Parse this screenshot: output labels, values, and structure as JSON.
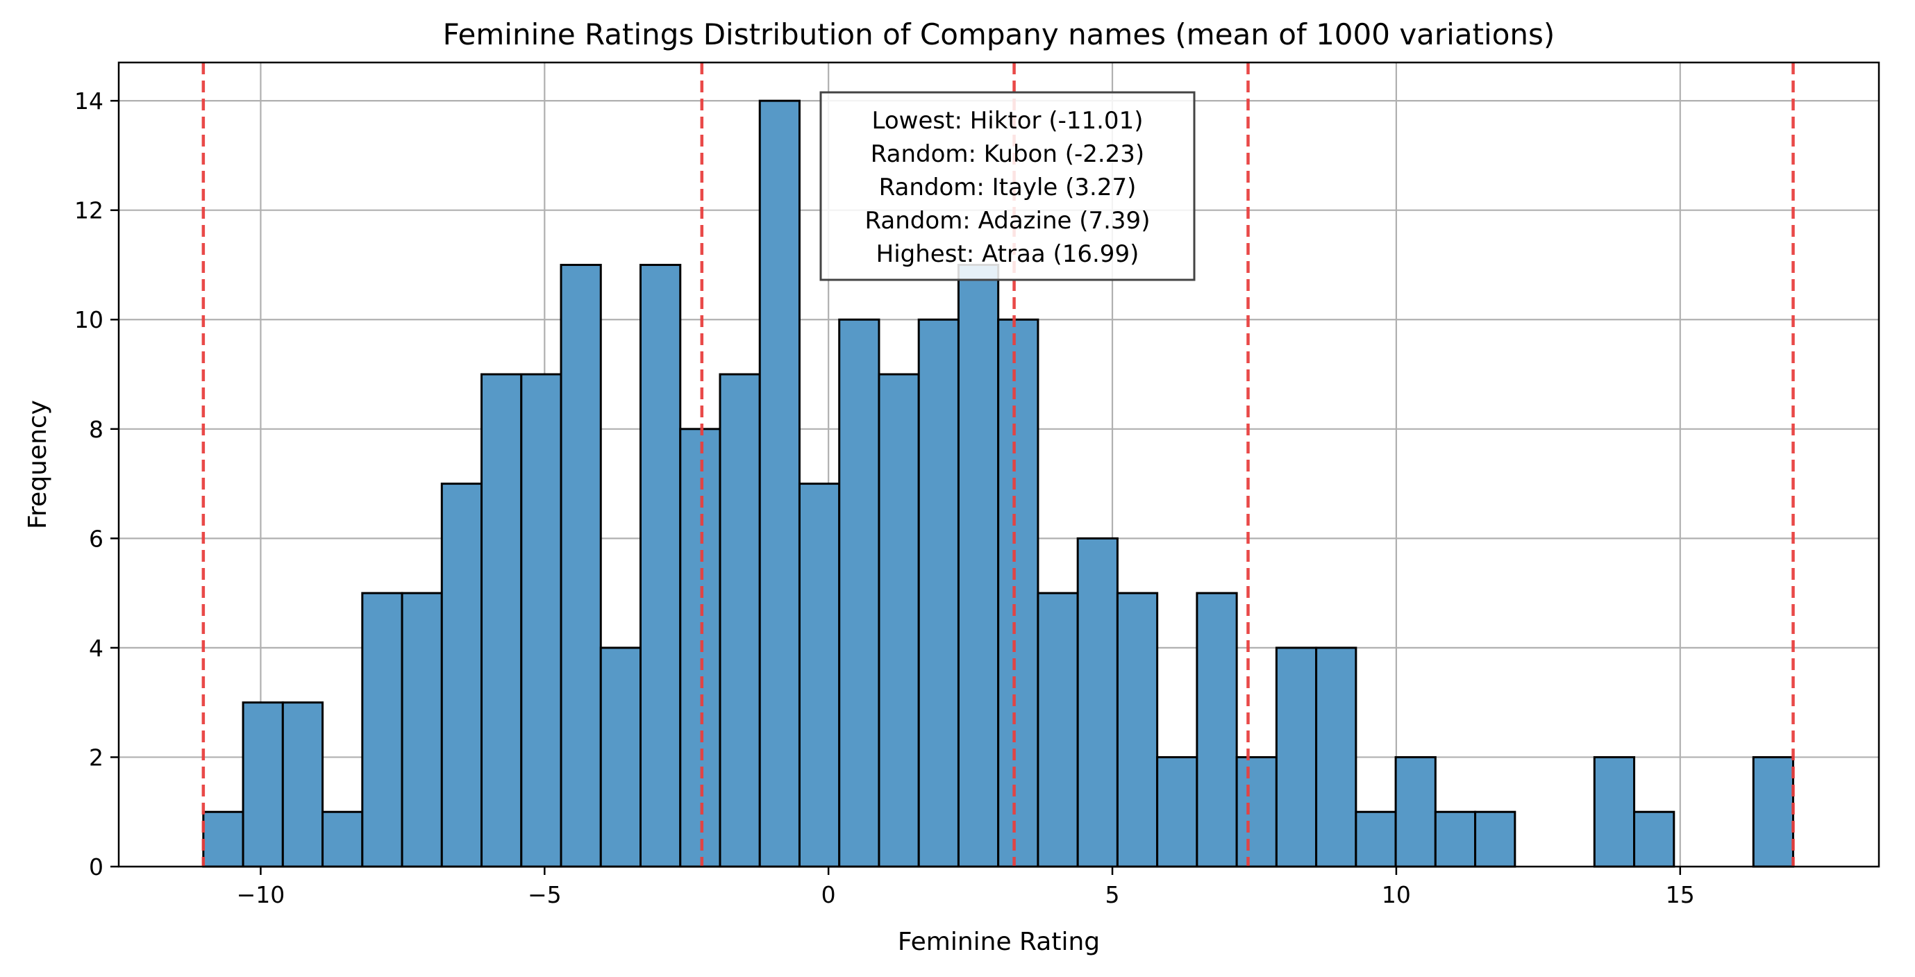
{
  "chart_data": {
    "type": "bar",
    "title": "Feminine Ratings Distribution of Company names (mean of 1000 variations)",
    "xlabel": "Feminine Rating",
    "ylabel": "Frequency",
    "xlim": [
      -12.5,
      18.5
    ],
    "ylim": [
      0,
      14.7
    ],
    "xticks": [
      -10,
      -5,
      0,
      5,
      10,
      15
    ],
    "xtick_labels": [
      "−10",
      "−5",
      "0",
      "5",
      "10",
      "15"
    ],
    "yticks": [
      0,
      2,
      4,
      6,
      8,
      10,
      12,
      14
    ],
    "ytick_labels": [
      "0",
      "2",
      "4",
      "6",
      "8",
      "10",
      "12",
      "14"
    ],
    "grid": true,
    "bin_range": [
      -11.01,
      16.99
    ],
    "counts": [
      1,
      3,
      3,
      1,
      5,
      5,
      7,
      9,
      9,
      11,
      4,
      11,
      8,
      9,
      14,
      7,
      10,
      9,
      10,
      11,
      10,
      5,
      6,
      5,
      2,
      5,
      2,
      4,
      4,
      1,
      2,
      1,
      1,
      0,
      0,
      2,
      1,
      0,
      0,
      2
    ],
    "bar_color": "#5799c7",
    "reference_lines": {
      "color": "#e8403f",
      "values": [
        -11.01,
        -2.23,
        3.27,
        7.39,
        16.99
      ]
    },
    "annotation": {
      "lines": [
        "Lowest: Hiktor (-11.01)",
        "Random: Kubon (-2.23)",
        "Random: Itayle (3.27)",
        "Random: Adazine (7.39)",
        "Highest: Atraa (16.99)"
      ]
    }
  }
}
